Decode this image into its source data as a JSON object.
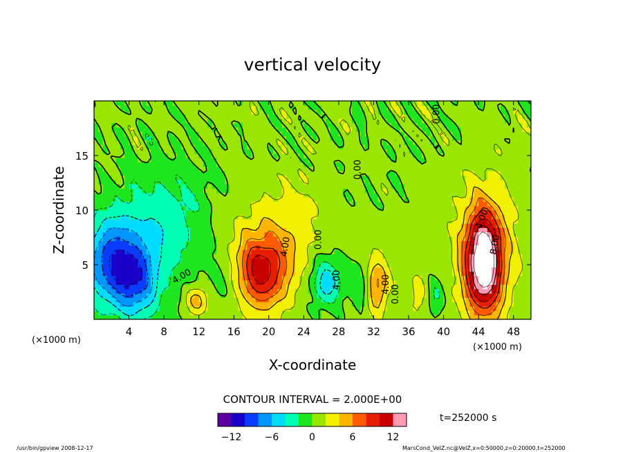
{
  "chart_data": {
    "type": "heatmap",
    "title": "vertical velocity",
    "xlabel": "X-coordinate",
    "ylabel": "Z-coordinate",
    "x_unit_left": "(×1000 m)",
    "x_unit_right": "(×1000 m)",
    "xlim": [
      0,
      50
    ],
    "ylim": [
      0,
      20
    ],
    "xticks": [
      4,
      8,
      12,
      16,
      20,
      24,
      28,
      32,
      36,
      40,
      44,
      48
    ],
    "yticks": [
      5,
      10,
      15
    ],
    "contour_interval_text": "CONTOUR INTERVAL = 2.000E+00",
    "time_text": "t=252000 s",
    "colorbar": {
      "min": -14,
      "max": 14,
      "ticks": [
        -12,
        -6,
        0,
        6,
        12
      ],
      "colors": [
        "#5a00a0",
        "#1a00c8",
        "#0a3cff",
        "#0096ff",
        "#00dcff",
        "#00ffb4",
        "#1ee61e",
        "#9be600",
        "#f0f000",
        "#ffb400",
        "#ff5a00",
        "#e61e00",
        "#c80000",
        "#ff9cb4"
      ]
    },
    "contour_labels": [
      {
        "text": "0.00",
        "x": 30.5,
        "y": 13.7,
        "rot": -90
      },
      {
        "text": "0.00",
        "x": 39.5,
        "y": 18.8,
        "rot": -90
      },
      {
        "text": "4.00",
        "x": 44.7,
        "y": 9.1,
        "rot": -70
      },
      {
        "text": "8.00",
        "x": 46.2,
        "y": 6.8,
        "rot": -80
      },
      {
        "text": "4.00",
        "x": 10.2,
        "y": 3.7,
        "rot": -30
      },
      {
        "text": "4.00",
        "x": 22.2,
        "y": 6.6,
        "rot": -80
      },
      {
        "text": "0.00",
        "x": 26.0,
        "y": 7.3,
        "rot": -90
      },
      {
        "text": "4.00",
        "x": 28.1,
        "y": 3.6,
        "rot": -90
      },
      {
        "text": "4.00",
        "x": 33.7,
        "y": 3.2,
        "rot": -90
      },
      {
        "text": "0.00",
        "x": 34.8,
        "y": 2.3,
        "rot": -90
      }
    ],
    "features": [
      {
        "x": 44.6,
        "y": 5.2,
        "peak": 15,
        "sx": 1.45,
        "sy": 3.2
      },
      {
        "x": 44.8,
        "y": 6.8,
        "peak": 3,
        "sx": 2.6,
        "sy": 4.5
      },
      {
        "x": 19.2,
        "y": 4.4,
        "peak": 8.5,
        "sx": 2.0,
        "sy": 2.3
      },
      {
        "x": 19.4,
        "y": 6.2,
        "peak": 2.5,
        "sx": 3.2,
        "sy": 3.5
      },
      {
        "x": 11.8,
        "y": 1.8,
        "peak": 5,
        "sx": 0.9,
        "sy": 0.9
      },
      {
        "x": 32.4,
        "y": 3.2,
        "peak": 6,
        "sx": 0.9,
        "sy": 1.8
      },
      {
        "x": 37.1,
        "y": 2.2,
        "peak": 2.5,
        "sx": 0.8,
        "sy": 1.4
      },
      {
        "x": 23.3,
        "y": 9.2,
        "peak": 1.8,
        "sx": 1.8,
        "sy": 3.0
      },
      {
        "x": 26.6,
        "y": 3.4,
        "peak": -6,
        "sx": 1.2,
        "sy": 1.5
      },
      {
        "x": 30.5,
        "y": 3.0,
        "peak": -2.5,
        "sx": 0.8,
        "sy": 1.4
      },
      {
        "x": 39.1,
        "y": 2.2,
        "peak": -3,
        "sx": 0.7,
        "sy": 1.2
      },
      {
        "x": 15.0,
        "y": 3.5,
        "peak": -2.0,
        "sx": 1.4,
        "sy": 1.8
      },
      {
        "x": 2.0,
        "y": 5.2,
        "peak": -9,
        "sx": 2.2,
        "sy": 2.8
      },
      {
        "x": 5.0,
        "y": 3.2,
        "peak": -6,
        "sx": 1.6,
        "sy": 2.2
      },
      {
        "x": 6.5,
        "y": 7.5,
        "peak": -3.5,
        "sx": 3.5,
        "sy": 4.0
      },
      {
        "x": 10.0,
        "y": 10.5,
        "peak": -1.5,
        "sx": 3.0,
        "sy": 3.5
      }
    ]
  },
  "footer": {
    "left": "/usr/bin/gpview  2008-12-17",
    "right": "MarsCond_VelZ.nc@VelZ,x=0:50000,z=0:20000,t=252000"
  }
}
